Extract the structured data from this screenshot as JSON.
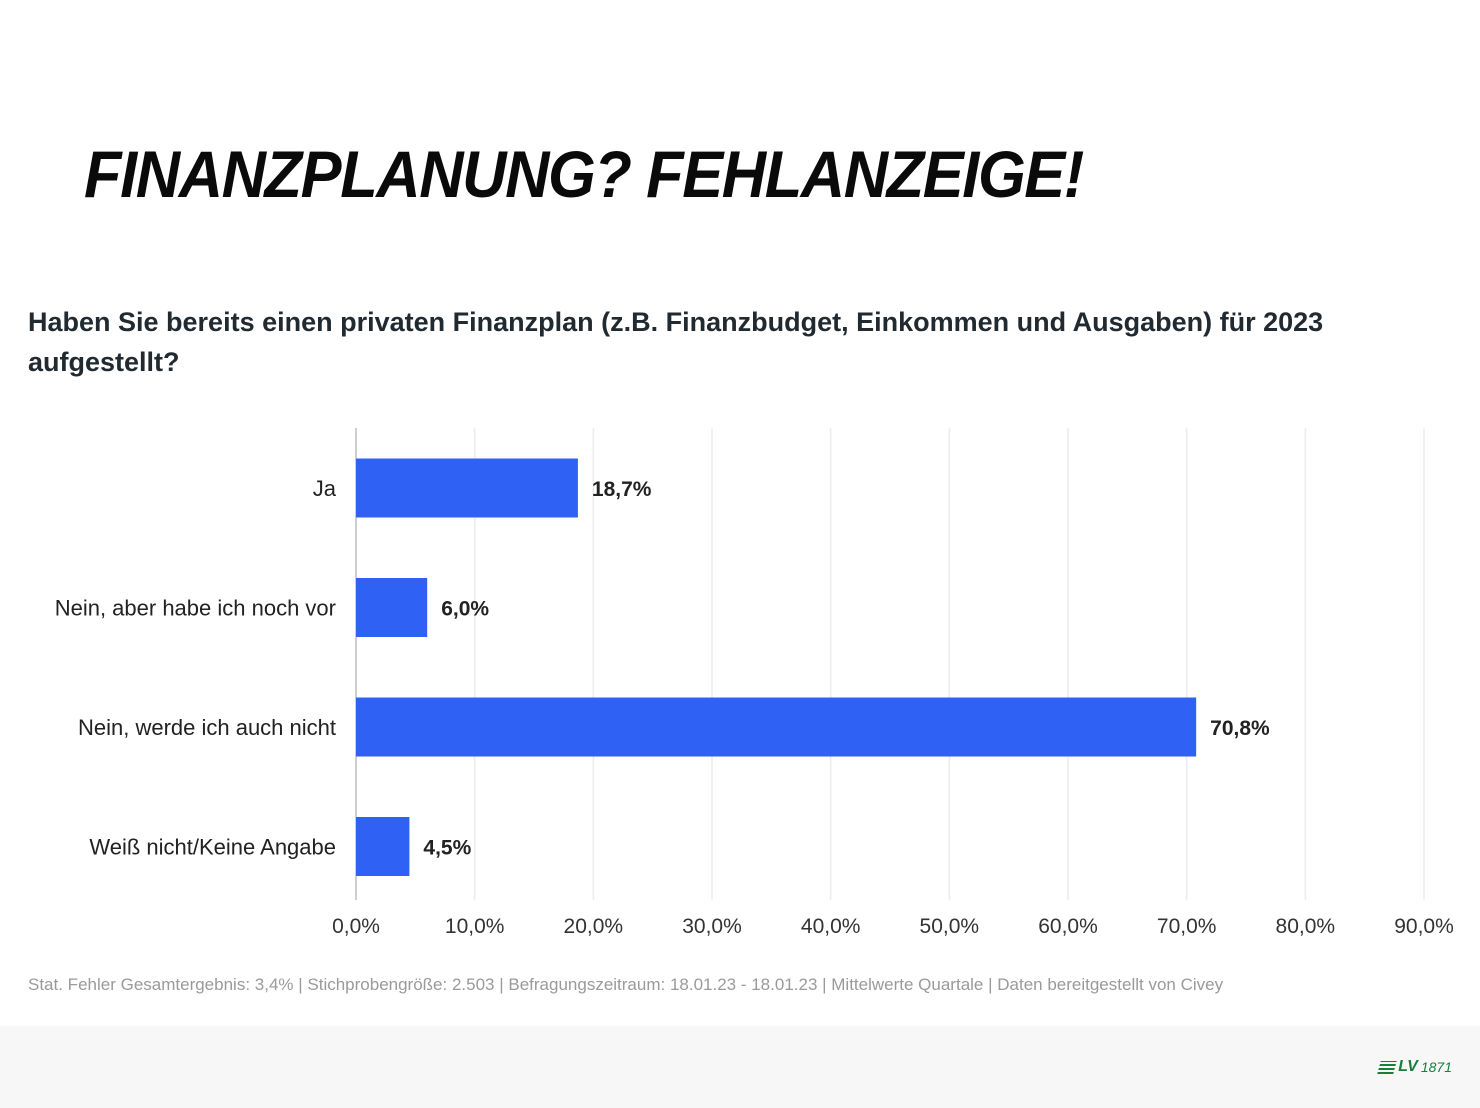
{
  "headline": "FINANZPLANUNG? FEHLANZEIGE!",
  "question": "Haben Sie bereits einen privaten Finanzplan (z.B. Finanzbudget, Einkommen und Ausgaben) für 2023 aufgestellt?",
  "footnote": "Stat. Fehler Gesamtergebnis: 3,4% | Stichprobengröße: 2.503 | Befragungszeitraum: 18.01.23 - 18.01.23 | Mittelwerte Quartale | Daten bereitgestellt von Civey",
  "logo": {
    "text": "LV",
    "year": "1871",
    "color": "#1a7d3c"
  },
  "chart_data": {
    "type": "bar",
    "orientation": "horizontal",
    "categories": [
      "Ja",
      "Nein, aber habe ich noch vor",
      "Nein, werde ich auch nicht",
      "Weiß nicht/Keine Angabe"
    ],
    "values": [
      18.7,
      6.0,
      70.8,
      4.5
    ],
    "value_labels": [
      "18,7%",
      "6,0%",
      "70,8%",
      "4,5%"
    ],
    "xlim": [
      0,
      90
    ],
    "x_ticks": [
      0,
      10,
      20,
      30,
      40,
      50,
      60,
      70,
      80,
      90
    ],
    "x_tick_labels": [
      "0,0%",
      "10,0%",
      "20,0%",
      "30,0%",
      "40,0%",
      "50,0%",
      "60,0%",
      "70,0%",
      "80,0%",
      "90,0%"
    ],
    "grid": true,
    "bar_color": "#2f61f5"
  }
}
